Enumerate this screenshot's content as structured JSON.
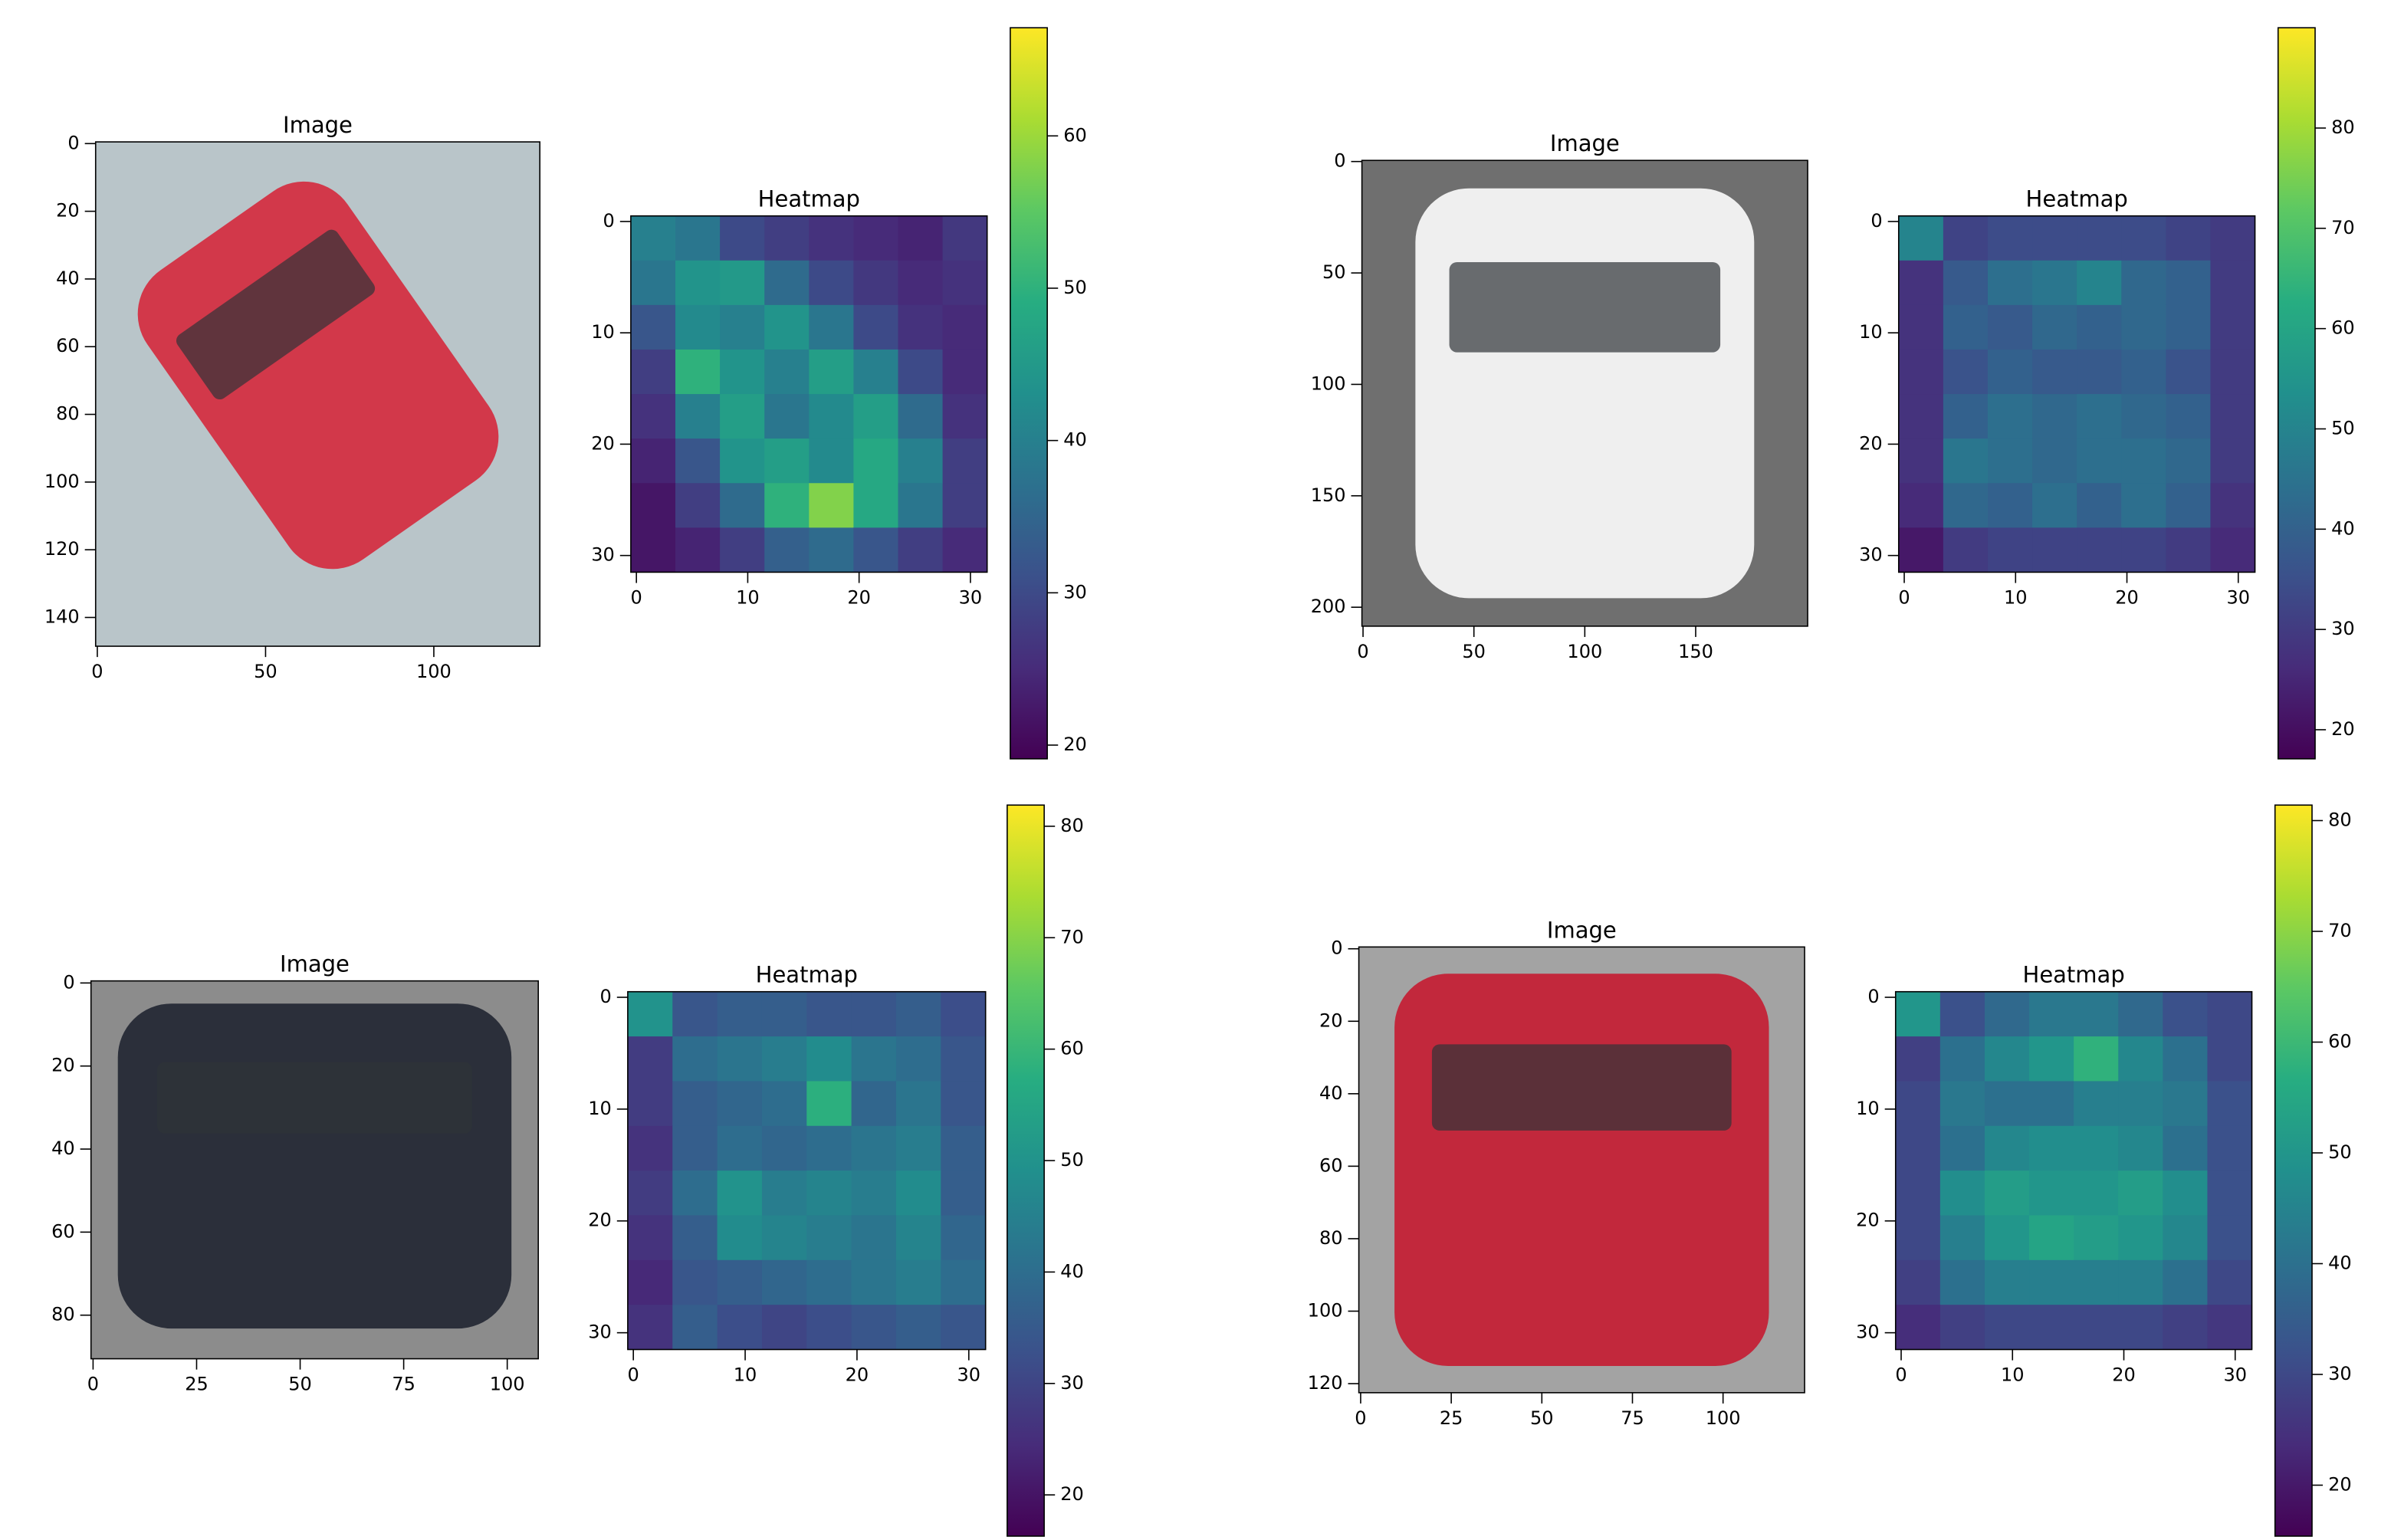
{
  "chart_data": [
    {
      "type": "image",
      "title": "Image",
      "xlim": [
        -0.5,
        131.5
      ],
      "ylim": [
        148.5,
        -0.5
      ],
      "xticks": [
        0,
        50,
        100
      ],
      "yticks": [
        0,
        20,
        40,
        60,
        80,
        100,
        120,
        140
      ],
      "background_color": "#b9c5c9",
      "color": "#d2384a"
    },
    {
      "type": "heatmap",
      "title": "Heatmap",
      "colormap": "viridis",
      "xlim": [
        -0.5,
        31.5
      ],
      "ylim": [
        31.5,
        -0.5
      ],
      "xticks": [
        0,
        10,
        20,
        30
      ],
      "yticks": [
        0,
        10,
        20,
        30
      ],
      "clim": [
        19.1,
        67.1
      ],
      "cticks": [
        20,
        30,
        40,
        50,
        60
      ],
      "z": [
        [
          40,
          38,
          30,
          28,
          26,
          25,
          24,
          27
        ],
        [
          38,
          44,
          45,
          36,
          30,
          27,
          25,
          26
        ],
        [
          32,
          42,
          40,
          44,
          38,
          30,
          26,
          25
        ],
        [
          28,
          50,
          44,
          40,
          46,
          40,
          30,
          25
        ],
        [
          26,
          40,
          46,
          38,
          42,
          46,
          36,
          26
        ],
        [
          24,
          32,
          44,
          46,
          42,
          48,
          40,
          28
        ],
        [
          22,
          28,
          36,
          50,
          58,
          48,
          38,
          28
        ],
        [
          22,
          24,
          28,
          34,
          36,
          32,
          28,
          25
        ]
      ]
    },
    {
      "type": "image",
      "title": "Image",
      "xlim": [
        -0.5,
        200.5
      ],
      "ylim": [
        208.5,
        -0.5
      ],
      "xticks": [
        0,
        50,
        100,
        150
      ],
      "yticks": [
        0,
        50,
        100,
        150,
        200
      ],
      "background_color": "#6f6f6f",
      "color": "#efefef"
    },
    {
      "type": "heatmap",
      "title": "Heatmap",
      "colormap": "viridis",
      "xlim": [
        -0.5,
        31.5
      ],
      "ylim": [
        31.5,
        -0.5
      ],
      "xticks": [
        0,
        10,
        20,
        30
      ],
      "yticks": [
        0,
        10,
        20,
        30
      ],
      "clim": [
        17.1,
        90
      ],
      "cticks": [
        20,
        30,
        40,
        50,
        60,
        70,
        80
      ],
      "z": [
        [
          50,
          32,
          34,
          34,
          34,
          34,
          32,
          30
        ],
        [
          28,
          38,
          44,
          46,
          50,
          42,
          40,
          30
        ],
        [
          28,
          40,
          38,
          42,
          40,
          42,
          40,
          30
        ],
        [
          28,
          36,
          40,
          38,
          38,
          40,
          36,
          30
        ],
        [
          28,
          40,
          44,
          42,
          44,
          42,
          40,
          30
        ],
        [
          28,
          46,
          44,
          42,
          44,
          44,
          42,
          30
        ],
        [
          26,
          42,
          40,
          44,
          40,
          44,
          40,
          28
        ],
        [
          22,
          30,
          32,
          32,
          32,
          32,
          30,
          26
        ]
      ]
    },
    {
      "type": "image",
      "title": "Image",
      "xlim": [
        -0.5,
        107.5
      ],
      "ylim": [
        90.5,
        -0.5
      ],
      "xticks": [
        0,
        25,
        50,
        75,
        100
      ],
      "yticks": [
        0,
        20,
        40,
        60,
        80
      ],
      "background_color": "#8c8c8c",
      "color": "#2b2f3a"
    },
    {
      "type": "heatmap",
      "title": "Heatmap",
      "colormap": "viridis",
      "xlim": [
        -0.5,
        31.5
      ],
      "ylim": [
        31.5,
        -0.5
      ],
      "xticks": [
        0,
        10,
        20,
        30
      ],
      "yticks": [
        0,
        10,
        20,
        30
      ],
      "clim": [
        16.3,
        81.9
      ],
      "cticks": [
        20,
        30,
        40,
        50,
        60,
        70,
        80
      ],
      "z": [
        [
          50,
          34,
          36,
          36,
          34,
          34,
          36,
          32
        ],
        [
          28,
          40,
          42,
          44,
          48,
          42,
          40,
          34
        ],
        [
          28,
          36,
          38,
          40,
          58,
          38,
          42,
          34
        ],
        [
          26,
          36,
          40,
          38,
          40,
          42,
          44,
          36
        ],
        [
          28,
          40,
          50,
          44,
          46,
          44,
          48,
          36
        ],
        [
          26,
          36,
          48,
          46,
          44,
          42,
          46,
          38
        ],
        [
          24,
          34,
          36,
          38,
          40,
          42,
          44,
          40
        ],
        [
          26,
          36,
          32,
          30,
          32,
          34,
          36,
          34
        ]
      ]
    },
    {
      "type": "image",
      "title": "Image",
      "xlim": [
        -0.5,
        122.5
      ],
      "ylim": [
        122.5,
        -0.5
      ],
      "xticks": [
        0,
        25,
        50,
        75,
        100
      ],
      "yticks": [
        0,
        20,
        40,
        60,
        80,
        100,
        120
      ],
      "background_color": "#a3a3a3",
      "color": "#c2283c"
    },
    {
      "type": "heatmap",
      "title": "Heatmap",
      "colormap": "viridis",
      "xlim": [
        -0.5,
        31.5
      ],
      "ylim": [
        31.5,
        -0.5
      ],
      "xticks": [
        0,
        10,
        20,
        30
      ],
      "yticks": [
        0,
        10,
        20,
        30
      ],
      "clim": [
        15.4,
        81.4
      ],
      "cticks": [
        20,
        30,
        40,
        50,
        60,
        70,
        80
      ],
      "z": [
        [
          50,
          32,
          38,
          42,
          42,
          38,
          32,
          30
        ],
        [
          28,
          40,
          46,
          50,
          58,
          46,
          40,
          30
        ],
        [
          30,
          42,
          40,
          40,
          44,
          44,
          42,
          32
        ],
        [
          30,
          40,
          46,
          48,
          48,
          46,
          40,
          32
        ],
        [
          30,
          48,
          52,
          50,
          50,
          52,
          48,
          32
        ],
        [
          30,
          44,
          50,
          54,
          52,
          50,
          46,
          32
        ],
        [
          28,
          40,
          44,
          44,
          44,
          44,
          40,
          30
        ],
        [
          24,
          28,
          30,
          30,
          30,
          30,
          28,
          26
        ]
      ]
    }
  ]
}
